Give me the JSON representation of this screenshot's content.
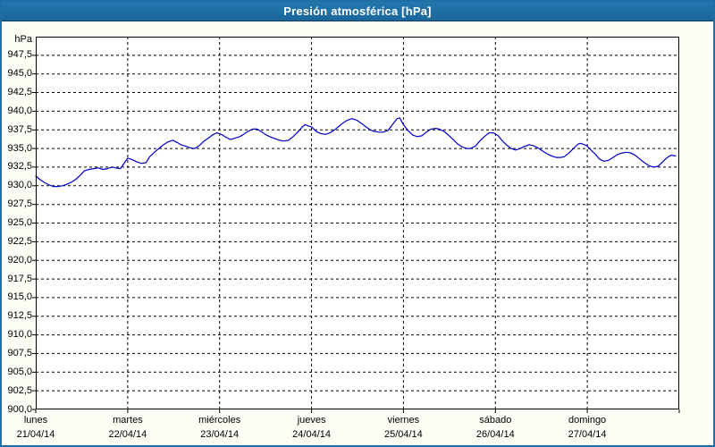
{
  "window": {
    "title": "Presión atmosférica [hPa]"
  },
  "colors": {
    "titlebar": "#1f6fa6",
    "titlebar_text": "#ffffff",
    "window_border": "#1f6fa6",
    "window_background": "#fcfdf5",
    "plot_background": "#ffffff",
    "grid": "#000000",
    "axis_text": "#000000",
    "series_line": "#0000cc"
  },
  "chart_data": {
    "type": "line",
    "title": "Presión atmosférica [hPa]",
    "ylabel": "hPa",
    "y_unit_label": "hPa",
    "ylim": [
      900,
      950
    ],
    "ytick_step": 2.5,
    "grid": "dashed",
    "legend": "none",
    "ytick_values": [
      947.5,
      945.0,
      942.5,
      940.0,
      937.5,
      935.0,
      932.5,
      930.0,
      927.5,
      925.0,
      922.5,
      920.0,
      917.5,
      915.0,
      912.5,
      910.0,
      907.5,
      905.0,
      902.5,
      900.0
    ],
    "ytick_labels": [
      "947,5",
      "945,0",
      "942,5",
      "940,0",
      "937,5",
      "935,0",
      "932,5",
      "930,0",
      "927,5",
      "925,0",
      "922,5",
      "920,0",
      "917,5",
      "915,0",
      "912,5",
      "910,0",
      "907,5",
      "905,0",
      "902,5",
      "900,0"
    ],
    "x_span_days": 7,
    "x_categories": [
      {
        "day": "lunes",
        "date": "21/04/14"
      },
      {
        "day": "martes",
        "date": "22/04/14"
      },
      {
        "day": "miércoles",
        "date": "23/04/14"
      },
      {
        "day": "jueves",
        "date": "24/04/14"
      },
      {
        "day": "viernes",
        "date": "25/04/14"
      },
      {
        "day": "sábado",
        "date": "26/04/14"
      },
      {
        "day": "domingo",
        "date": "27/04/14"
      }
    ],
    "series": [
      {
        "name": "Presión atmosférica",
        "color": "#0000cc",
        "points": [
          [
            0.0,
            931.3
          ],
          [
            0.05,
            930.8
          ],
          [
            0.1,
            930.4
          ],
          [
            0.15,
            930.1
          ],
          [
            0.19,
            929.9
          ],
          [
            0.24,
            929.9
          ],
          [
            0.29,
            930.0
          ],
          [
            0.34,
            930.2
          ],
          [
            0.39,
            930.5
          ],
          [
            0.44,
            930.9
          ],
          [
            0.49,
            931.5
          ],
          [
            0.53,
            932.0
          ],
          [
            0.58,
            932.2
          ],
          [
            0.63,
            932.3
          ],
          [
            0.68,
            932.4
          ],
          [
            0.73,
            932.2
          ],
          [
            0.78,
            932.3
          ],
          [
            0.83,
            932.5
          ],
          [
            0.87,
            932.4
          ],
          [
            0.92,
            932.3
          ],
          [
            0.95,
            932.8
          ],
          [
            1.0,
            933.7
          ],
          [
            1.05,
            933.5
          ],
          [
            1.1,
            933.2
          ],
          [
            1.15,
            933.0
          ],
          [
            1.2,
            933.1
          ],
          [
            1.24,
            933.9
          ],
          [
            1.29,
            934.5
          ],
          [
            1.34,
            935.0
          ],
          [
            1.39,
            935.5
          ],
          [
            1.44,
            935.9
          ],
          [
            1.49,
            936.1
          ],
          [
            1.54,
            935.8
          ],
          [
            1.58,
            935.5
          ],
          [
            1.63,
            935.3
          ],
          [
            1.68,
            935.1
          ],
          [
            1.73,
            935.0
          ],
          [
            1.78,
            935.4
          ],
          [
            1.83,
            936.0
          ],
          [
            1.88,
            936.4
          ],
          [
            1.92,
            936.8
          ],
          [
            1.97,
            937.1
          ],
          [
            2.02,
            936.9
          ],
          [
            2.07,
            936.5
          ],
          [
            2.12,
            936.2
          ],
          [
            2.17,
            936.4
          ],
          [
            2.22,
            936.6
          ],
          [
            2.26,
            936.9
          ],
          [
            2.31,
            937.3
          ],
          [
            2.36,
            937.6
          ],
          [
            2.41,
            937.6
          ],
          [
            2.46,
            937.2
          ],
          [
            2.51,
            936.8
          ],
          [
            2.56,
            936.5
          ],
          [
            2.61,
            936.3
          ],
          [
            2.65,
            936.1
          ],
          [
            2.7,
            936.0
          ],
          [
            2.75,
            936.1
          ],
          [
            2.8,
            936.6
          ],
          [
            2.85,
            937.2
          ],
          [
            2.9,
            937.9
          ],
          [
            2.93,
            938.2
          ],
          [
            2.97,
            938.0
          ],
          [
            3.0,
            937.9
          ],
          [
            3.05,
            937.3
          ],
          [
            3.1,
            937.0
          ],
          [
            3.15,
            936.9
          ],
          [
            3.2,
            937.1
          ],
          [
            3.25,
            937.5
          ],
          [
            3.3,
            938.0
          ],
          [
            3.34,
            938.4
          ],
          [
            3.39,
            938.8
          ],
          [
            3.44,
            939.0
          ],
          [
            3.49,
            938.8
          ],
          [
            3.54,
            938.4
          ],
          [
            3.59,
            937.9
          ],
          [
            3.64,
            937.5
          ],
          [
            3.68,
            937.3
          ],
          [
            3.73,
            937.2
          ],
          [
            3.78,
            937.2
          ],
          [
            3.83,
            937.4
          ],
          [
            3.88,
            938.2
          ],
          [
            3.93,
            939.0
          ],
          [
            3.96,
            939.1
          ],
          [
            4.0,
            938.2
          ],
          [
            4.05,
            937.4
          ],
          [
            4.1,
            936.8
          ],
          [
            4.15,
            936.6
          ],
          [
            4.2,
            936.7
          ],
          [
            4.25,
            937.2
          ],
          [
            4.3,
            937.6
          ],
          [
            4.35,
            937.7
          ],
          [
            4.39,
            937.6
          ],
          [
            4.44,
            937.3
          ],
          [
            4.49,
            936.8
          ],
          [
            4.54,
            936.2
          ],
          [
            4.59,
            935.6
          ],
          [
            4.64,
            935.2
          ],
          [
            4.69,
            935.0
          ],
          [
            4.73,
            935.0
          ],
          [
            4.78,
            935.3
          ],
          [
            4.83,
            936.0
          ],
          [
            4.88,
            936.6
          ],
          [
            4.93,
            937.1
          ],
          [
            4.98,
            937.1
          ],
          [
            5.03,
            936.7
          ],
          [
            5.07,
            936.1
          ],
          [
            5.12,
            935.5
          ],
          [
            5.17,
            935.0
          ],
          [
            5.22,
            934.8
          ],
          [
            5.27,
            935.0
          ],
          [
            5.32,
            935.3
          ],
          [
            5.37,
            935.5
          ],
          [
            5.41,
            935.4
          ],
          [
            5.46,
            935.1
          ],
          [
            5.51,
            934.7
          ],
          [
            5.56,
            934.3
          ],
          [
            5.61,
            934.0
          ],
          [
            5.66,
            933.8
          ],
          [
            5.71,
            933.8
          ],
          [
            5.75,
            933.9
          ],
          [
            5.8,
            934.4
          ],
          [
            5.85,
            935.0
          ],
          [
            5.9,
            935.6
          ],
          [
            5.93,
            935.7
          ],
          [
            5.99,
            935.4
          ],
          [
            6.04,
            934.8
          ],
          [
            6.09,
            934.2
          ],
          [
            6.13,
            933.6
          ],
          [
            6.18,
            933.3
          ],
          [
            6.23,
            933.4
          ],
          [
            6.28,
            933.8
          ],
          [
            6.33,
            934.2
          ],
          [
            6.38,
            934.4
          ],
          [
            6.43,
            934.5
          ],
          [
            6.47,
            934.4
          ],
          [
            6.52,
            934.1
          ],
          [
            6.57,
            933.6
          ],
          [
            6.62,
            933.1
          ],
          [
            6.67,
            932.7
          ],
          [
            6.72,
            932.5
          ],
          [
            6.77,
            932.6
          ],
          [
            6.81,
            933.1
          ],
          [
            6.86,
            933.7
          ],
          [
            6.91,
            934.1
          ],
          [
            6.96,
            934.0
          ]
        ]
      }
    ]
  }
}
